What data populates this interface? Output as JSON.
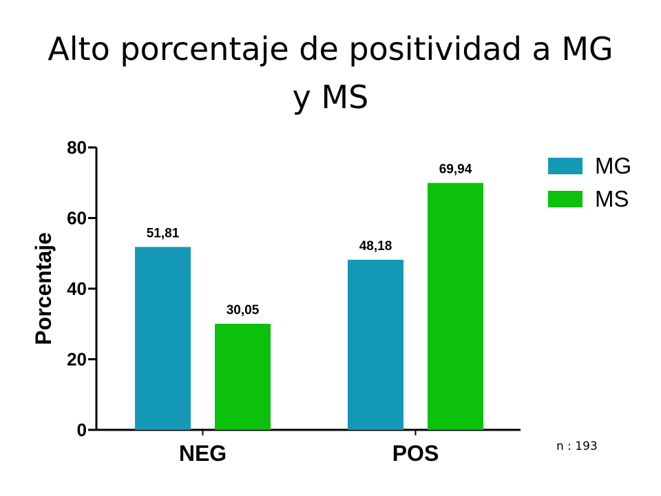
{
  "slide": {
    "title": "Alto porcentaje de positividad a MG y MS",
    "note": "n : 193"
  },
  "chart_data": {
    "type": "bar",
    "title": "",
    "xlabel": "",
    "ylabel": "Porcentaje",
    "categories": [
      "NEG",
      "POS"
    ],
    "series": [
      {
        "name": "MG",
        "color": "#1399b5",
        "values": [
          51.81,
          48.18
        ],
        "labels": [
          "51,81",
          "48,18"
        ]
      },
      {
        "name": "MS",
        "color": "#0cc10c",
        "values": [
          30.05,
          69.94
        ],
        "labels": [
          "30,05",
          "69,94"
        ]
      }
    ],
    "ylim": [
      0,
      80
    ],
    "yticks": [
      0,
      20,
      40,
      60,
      80
    ],
    "grid": false,
    "legend_position": "top-right"
  }
}
